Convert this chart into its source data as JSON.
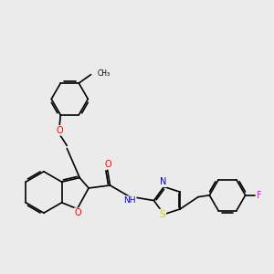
{
  "bg_color": "#ebebeb",
  "bond_color": "#000000",
  "bond_width": 1.2,
  "dbo": 0.055,
  "atom_colors": {
    "O": "#ff0000",
    "N": "#0000cc",
    "S": "#cccc00",
    "F": "#ff00ff",
    "C": "#000000"
  },
  "figsize": [
    3.0,
    3.0
  ],
  "dpi": 100
}
